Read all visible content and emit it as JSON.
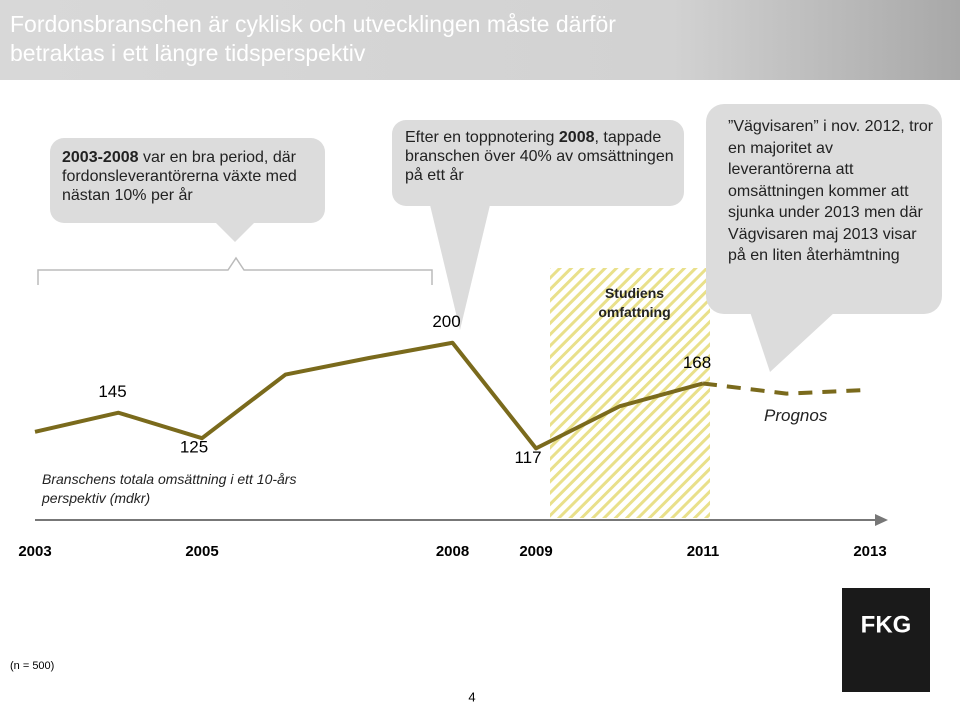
{
  "header": {
    "title": "Fordonsbranschen är cyklisk och utvecklingen måste därför betraktas i ett längre tidsperspektiv"
  },
  "callouts": [
    {
      "parts": [
        {
          "text": "2003-2008",
          "bold": true
        },
        {
          "text": " var en bra period, där fordonsleverantörerna växte med nästan 10% per år",
          "bold": false
        }
      ]
    },
    {
      "parts": [
        {
          "text": "Efter en toppnotering ",
          "bold": false
        },
        {
          "text": "2008",
          "bold": true
        },
        {
          "text": ", tappade branschen över 40% av omsättningen på ett år",
          "bold": false
        }
      ]
    },
    {
      "parts": [
        {
          "text": "”Vägvisaren” i nov. 2012, tror en majoritet av leverantörerna att omsättningen kommer att sjunka under 2013 men där Vägvisaren maj 2013 visar på en liten återhämtning",
          "bold": false
        }
      ]
    }
  ],
  "chart_data": {
    "type": "line",
    "x_label": "Branschens totala omsättning i ett 10-års perspektiv (mdkr)",
    "categories": [
      "2003",
      null,
      "2005",
      null,
      null,
      "2008",
      "2009",
      null,
      "2011",
      null,
      "2013"
    ],
    "series": [
      {
        "color": "#7a6a1c",
        "style": "solid",
        "values": [
          130,
          145,
          125,
          175,
          188,
          200,
          117,
          150,
          168,
          null,
          null
        ],
        "value_labels": [
          null,
          "145",
          "125",
          null,
          null,
          "200",
          "117",
          null,
          "168",
          null,
          null
        ]
      },
      {
        "color": "#7a6a1c",
        "style": "dashed",
        "values": [
          null,
          null,
          null,
          null,
          null,
          null,
          null,
          null,
          168,
          160,
          163
        ]
      }
    ],
    "ylim": [
      100,
      210
    ],
    "highlight_label": "Studiens omfattning",
    "forecast_label": "Prognos"
  },
  "footer": {
    "sample": "(n = 500)",
    "page": "4",
    "logo": "FKG"
  }
}
